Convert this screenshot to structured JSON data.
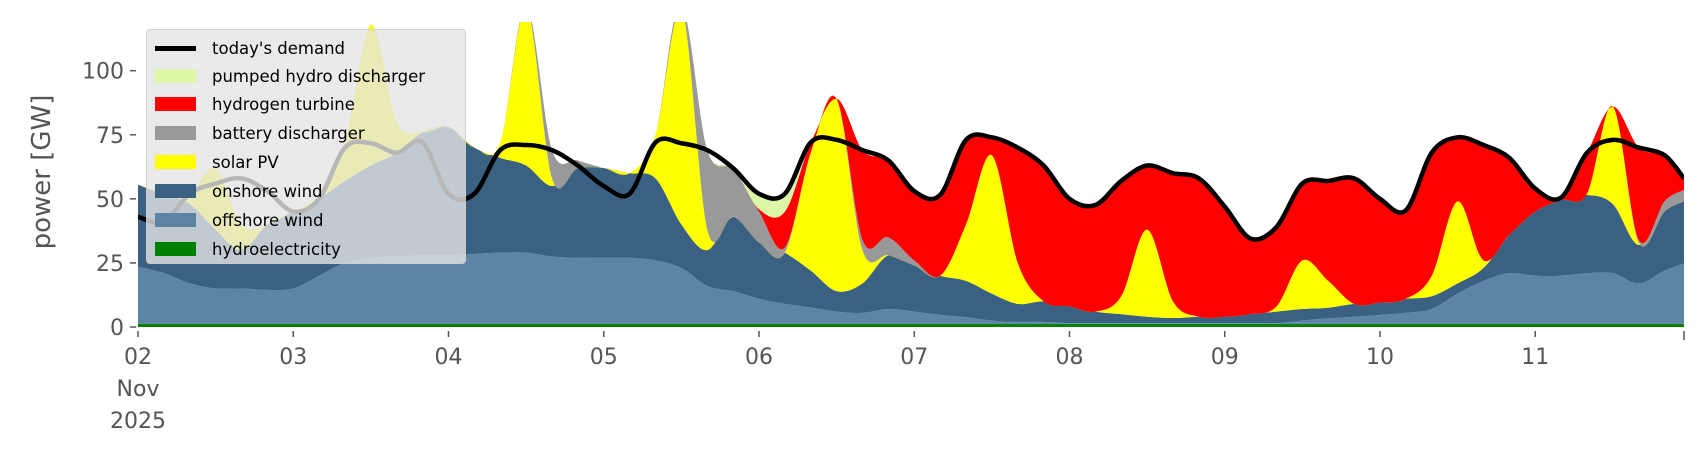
{
  "chart_data": {
    "type": "area",
    "stacked": true,
    "ylabel": "power [GW]",
    "xlabel": "",
    "ylim": [
      0,
      119
    ],
    "xlim": [
      "2025-11-02 00:00",
      "2025-11-11 23:00"
    ],
    "grid": false,
    "legend_position": "top-left",
    "yticks": [
      0,
      25,
      50,
      75,
      100
    ],
    "xticks": {
      "positions": [
        "2025-11-02",
        "2025-11-03",
        "2025-11-04",
        "2025-11-05",
        "2025-11-06",
        "2025-11-07",
        "2025-11-08",
        "2025-11-09",
        "2025-11-10",
        "2025-11-11"
      ],
      "labels": [
        "02",
        "03",
        "04",
        "05",
        "06",
        "07",
        "08",
        "09",
        "10",
        "11"
      ],
      "first_sublabels": [
        "Nov",
        "2025"
      ]
    },
    "x": [
      "2025-11-02 00:00",
      "2025-11-02 04:00",
      "2025-11-02 08:00",
      "2025-11-02 12:00",
      "2025-11-02 16:00",
      "2025-11-02 20:00",
      "2025-11-03 00:00",
      "2025-11-03 04:00",
      "2025-11-03 08:00",
      "2025-11-03 12:00",
      "2025-11-03 16:00",
      "2025-11-03 20:00",
      "2025-11-04 00:00",
      "2025-11-04 04:00",
      "2025-11-04 08:00",
      "2025-11-04 12:00",
      "2025-11-04 16:00",
      "2025-11-04 20:00",
      "2025-11-05 00:00",
      "2025-11-05 04:00",
      "2025-11-05 08:00",
      "2025-11-05 12:00",
      "2025-11-05 16:00",
      "2025-11-05 20:00",
      "2025-11-06 00:00",
      "2025-11-06 04:00",
      "2025-11-06 08:00",
      "2025-11-06 12:00",
      "2025-11-06 16:00",
      "2025-11-06 20:00",
      "2025-11-07 00:00",
      "2025-11-07 04:00",
      "2025-11-07 08:00",
      "2025-11-07 12:00",
      "2025-11-07 16:00",
      "2025-11-07 20:00",
      "2025-11-08 00:00",
      "2025-11-08 04:00",
      "2025-11-08 08:00",
      "2025-11-08 12:00",
      "2025-11-08 16:00",
      "2025-11-08 20:00",
      "2025-11-09 00:00",
      "2025-11-09 04:00",
      "2025-11-09 08:00",
      "2025-11-09 12:00",
      "2025-11-09 16:00",
      "2025-11-09 20:00",
      "2025-11-10 00:00",
      "2025-11-10 04:00",
      "2025-11-10 08:00",
      "2025-11-10 12:00",
      "2025-11-10 16:00",
      "2025-11-10 20:00",
      "2025-11-11 00:00",
      "2025-11-11 04:00",
      "2025-11-11 08:00",
      "2025-11-11 12:00",
      "2025-11-11 16:00",
      "2025-11-11 20:00",
      "2025-11-11 23:00"
    ],
    "series": [
      {
        "name": "today's demand",
        "kind": "line",
        "color": "#000000",
        "values": [
          43,
          41,
          52,
          56,
          58,
          53,
          45,
          50,
          70,
          71.7,
          68,
          72,
          52,
          52,
          69,
          71,
          69,
          63,
          55,
          52,
          72,
          71.7,
          69,
          62,
          52,
          52,
          72,
          73,
          69,
          65,
          53,
          51.5,
          73,
          74,
          70,
          63,
          50,
          47.6,
          57,
          63,
          60,
          58,
          47,
          34.5,
          39,
          56,
          57,
          58,
          50,
          45.5,
          68,
          74,
          71,
          66,
          54,
          50.5,
          68,
          73,
          70,
          67,
          58
        ]
      },
      {
        "name": "pumped hydro discharger",
        "kind": "area",
        "color": "#dcf7a8",
        "values": [
          0,
          0,
          0,
          0,
          0,
          0,
          0,
          0,
          0,
          0,
          0,
          0,
          0,
          0,
          0,
          0,
          0,
          0,
          0,
          0,
          0,
          0,
          0,
          0,
          6,
          7,
          0,
          0,
          0,
          0,
          0,
          0,
          0,
          0,
          0,
          0,
          0,
          0,
          0,
          0,
          0,
          0,
          0,
          0,
          0,
          0,
          0,
          0,
          0,
          0,
          0,
          0,
          0,
          0,
          0,
          0,
          0,
          0,
          0,
          0,
          0
        ]
      },
      {
        "name": "hydrogen turbine",
        "kind": "area",
        "color": "#ff0000",
        "values": [
          0,
          0,
          0,
          0,
          0,
          0,
          0,
          0,
          0,
          0,
          0,
          0,
          0,
          0,
          0,
          0,
          0,
          0,
          0,
          0,
          0,
          0,
          0,
          0,
          1,
          14,
          4,
          0,
          35,
          30,
          27,
          31.5,
          33,
          7,
          45,
          53,
          42,
          41.6,
          45,
          25,
          50,
          54,
          43,
          29.5,
          31,
          30,
          39,
          49,
          40.5,
          34.5,
          48,
          25,
          45,
          30,
          9,
          1,
          16,
          0,
          36,
          18,
          4.5
        ]
      },
      {
        "name": "battery discharger",
        "kind": "area",
        "color": "#999999",
        "values": [
          0,
          0,
          0,
          0,
          0,
          0,
          0,
          0,
          0,
          0,
          0,
          0,
          0,
          0,
          0,
          0,
          11,
          3,
          0,
          0,
          0,
          0,
          31,
          19,
          12,
          2,
          0,
          0,
          4,
          7,
          2,
          0,
          0,
          0,
          0,
          0,
          0,
          0,
          0,
          0,
          0,
          0,
          0,
          0,
          0,
          0,
          0,
          0,
          0,
          0,
          0,
          0,
          0,
          0,
          0,
          0,
          0,
          0,
          1,
          4,
          4.5
        ]
      },
      {
        "name": "solar PV",
        "kind": "area",
        "color": "#ffff00",
        "values": [
          0,
          0,
          4,
          24,
          10,
          0,
          0,
          0,
          15,
          55,
          12,
          0,
          0,
          0,
          6,
          62,
          3,
          0,
          0,
          0,
          17,
          85,
          8,
          0,
          0,
          0,
          46,
          75,
          13,
          0,
          0,
          0,
          22,
          54,
          16,
          0,
          0,
          0,
          7,
          34,
          6.5,
          0,
          0,
          0,
          2,
          19,
          10.5,
          0,
          0,
          0,
          8,
          32,
          3,
          0,
          0,
          0,
          0.5,
          38,
          1,
          0,
          0
        ]
      },
      {
        "name": "onshore wind",
        "kind": "area",
        "color": "#3b6182",
        "values": [
          32,
          31,
          31,
          23,
          15,
          25.5,
          30,
          30,
          32,
          36,
          40.5,
          48,
          50,
          41.5,
          37,
          34,
          27.5,
          35,
          35,
          33,
          32,
          17,
          14,
          29,
          22,
          20,
          14.4,
          8,
          11.5,
          21,
          18,
          15.3,
          14.2,
          10.5,
          7,
          8,
          6.5,
          4.5,
          3.5,
          2.5,
          2,
          2.5,
          2.5,
          3.5,
          4.5,
          4.5,
          4.1,
          5,
          4.8,
          5.5,
          5,
          4,
          5,
          15,
          25,
          29.5,
          30.5,
          27,
          15,
          23,
          24.2
        ]
      },
      {
        "name": "offshore wind",
        "kind": "area",
        "color": "#5c84a5",
        "values": [
          22.3,
          19.8,
          15.8,
          13.8,
          13.8,
          13.3,
          13.8,
          18.8,
          23.8,
          25.8,
          26.3,
          26.8,
          26.8,
          27.3,
          27.8,
          27.8,
          26.3,
          25.8,
          25.8,
          25.8,
          24.8,
          21.8,
          14.8,
          12.8,
          9.8,
          7.8,
          6.4,
          4.8,
          4.3,
          5.8,
          4.8,
          3.5,
          2.6,
          1.3,
          0.8,
          0.8,
          0.3,
          0.3,
          0.3,
          0.3,
          0.3,
          0.3,
          0.3,
          0.3,
          0.3,
          1.3,
          2.2,
          2.8,
          3.5,
          4.3,
          5.8,
          11.8,
          16.8,
          19.8,
          18.8,
          18.8,
          19.8,
          19.8,
          15.8,
          20.8,
          23.6
        ]
      },
      {
        "name": "hydroelectricity",
        "kind": "area",
        "color": "#008000",
        "values": [
          1.2,
          1.2,
          1.2,
          1.2,
          1.2,
          1.2,
          1.2,
          1.2,
          1.2,
          1.2,
          1.2,
          1.2,
          1.2,
          1.2,
          1.2,
          1.2,
          1.2,
          1.2,
          1.2,
          1.2,
          1.2,
          1.2,
          1.2,
          1.2,
          1.2,
          1.2,
          1.2,
          1.2,
          1.2,
          1.2,
          1.2,
          1.2,
          1.2,
          1.2,
          1.2,
          1.2,
          1.2,
          1.2,
          1.2,
          1.2,
          1.2,
          1.2,
          1.2,
          1.2,
          1.2,
          1.2,
          1.2,
          1.2,
          1.2,
          1.2,
          1.2,
          1.2,
          1.2,
          1.2,
          1.2,
          1.2,
          1.2,
          1.2,
          1.2,
          1.2,
          1.2
        ]
      }
    ]
  }
}
